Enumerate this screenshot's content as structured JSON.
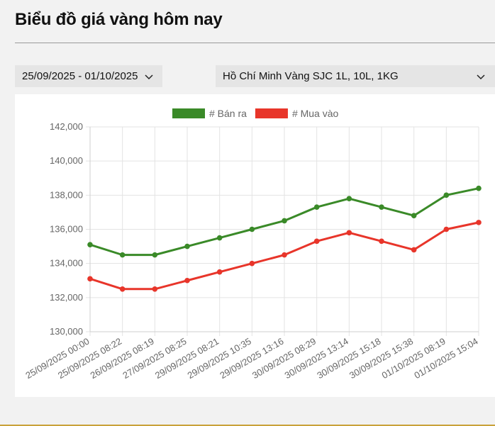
{
  "page": {
    "title": "Biểu đồ giá vàng hôm nay",
    "date_range": "25/09/2025 - 01/10/2025",
    "region_product": "Hồ Chí Minh Vàng SJC 1L, 10L, 1KG"
  },
  "chart_data": {
    "type": "line",
    "title": "",
    "xlabel": "",
    "ylabel": "",
    "categories": [
      "25/09/2025 00:00",
      "25/09/2025 08:22",
      "26/09/2025 08:19",
      "27/09/2025 08:25",
      "29/09/2025 08:21",
      "29/09/2025 10:35",
      "29/09/2025 13:16",
      "30/09/2025 08:29",
      "30/09/2025 13:14",
      "30/09/2025 15:18",
      "30/09/2025 15:38",
      "01/10/2025 08:19",
      "01/10/2025 15:04"
    ],
    "series": [
      {
        "name": "# Bán ra",
        "color": "#3a8a28",
        "values": [
          135100,
          134500,
          134500,
          135000,
          135500,
          136000,
          136500,
          137300,
          137800,
          137300,
          136800,
          138000,
          138400
        ]
      },
      {
        "name": "# Mua vào",
        "color": "#e8352a",
        "values": [
          133100,
          132500,
          132500,
          133000,
          133500,
          134000,
          134500,
          135300,
          135800,
          135300,
          134800,
          136000,
          136400
        ]
      }
    ],
    "ylim": [
      130000,
      142000
    ],
    "yticks": [
      130000,
      132000,
      134000,
      136000,
      138000,
      140000,
      142000
    ],
    "ytick_labels": [
      "130,000",
      "132,000",
      "134,000",
      "136,000",
      "138,000",
      "140,000",
      "142,000"
    ],
    "grid": true,
    "legend_position": "top-center"
  }
}
